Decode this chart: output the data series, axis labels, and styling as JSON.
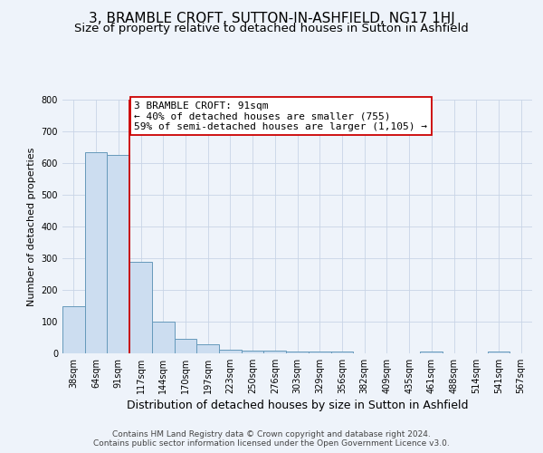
{
  "title": "3, BRAMBLE CROFT, SUTTON-IN-ASHFIELD, NG17 1HJ",
  "subtitle": "Size of property relative to detached houses in Sutton in Ashfield",
  "xlabel": "Distribution of detached houses by size in Sutton in Ashfield",
  "ylabel": "Number of detached properties",
  "categories": [
    "38sqm",
    "64sqm",
    "91sqm",
    "117sqm",
    "144sqm",
    "170sqm",
    "197sqm",
    "223sqm",
    "250sqm",
    "276sqm",
    "303sqm",
    "329sqm",
    "356sqm",
    "382sqm",
    "409sqm",
    "435sqm",
    "461sqm",
    "488sqm",
    "514sqm",
    "541sqm",
    "567sqm"
  ],
  "values": [
    148,
    633,
    625,
    288,
    100,
    45,
    30,
    12,
    10,
    10,
    6,
    6,
    6,
    0,
    0,
    0,
    6,
    0,
    0,
    6,
    0
  ],
  "bar_color": "#ccddf0",
  "bar_edge_color": "#6699bb",
  "vline_index": 2,
  "vline_color": "#cc0000",
  "ylim": [
    0,
    800
  ],
  "yticks": [
    0,
    100,
    200,
    300,
    400,
    500,
    600,
    700,
    800
  ],
  "annotation_line1": "3 BRAMBLE CROFT: 91sqm",
  "annotation_line2": "← 40% of detached houses are smaller (755)",
  "annotation_line3": "59% of semi-detached houses are larger (1,105) →",
  "annotation_box_facecolor": "#ffffff",
  "annotation_box_edgecolor": "#cc0000",
  "background_color": "#eef3fa",
  "grid_color": "#c8d4e6",
  "title_fontsize": 11,
  "subtitle_fontsize": 9.5,
  "xlabel_fontsize": 9,
  "ylabel_fontsize": 8,
  "tick_fontsize": 7,
  "annotation_fontsize": 8,
  "footer_fontsize": 6.5,
  "footer_line1": "Contains HM Land Registry data © Crown copyright and database right 2024.",
  "footer_line2": "Contains public sector information licensed under the Open Government Licence v3.0."
}
